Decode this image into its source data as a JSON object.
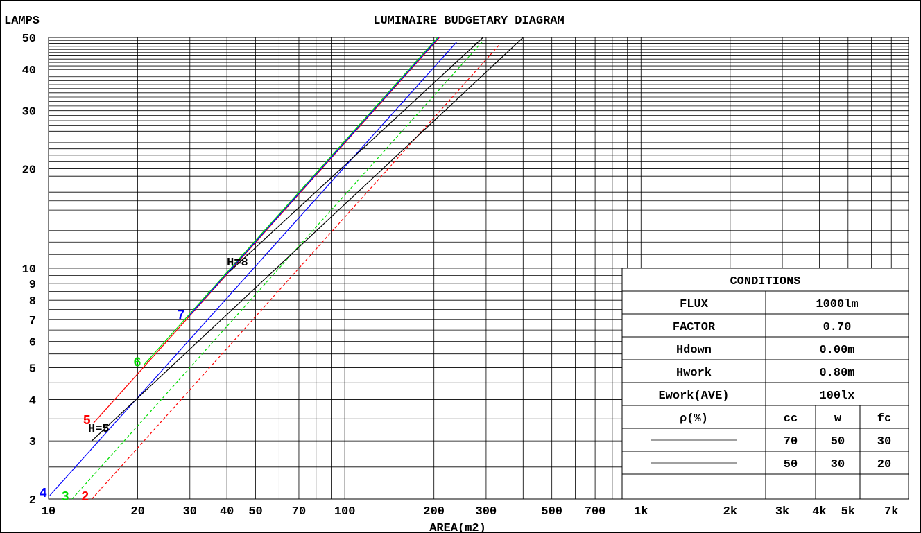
{
  "chart_data": {
    "type": "line",
    "title": "LUMINAIRE BUDGETARY DIAGRAM",
    "ylabel": "LAMPS",
    "xlabel": "AREA(m2)",
    "x_scale": "log",
    "y_scale": "log",
    "xlim": [
      10,
      8000
    ],
    "ylim": [
      2,
      50
    ],
    "x_ticks": [
      {
        "value": 10,
        "label": "10"
      },
      {
        "value": 20,
        "label": "20"
      },
      {
        "value": 30,
        "label": "30"
      },
      {
        "value": 40,
        "label": "40"
      },
      {
        "value": 50,
        "label": "50"
      },
      {
        "value": 70,
        "label": "70"
      },
      {
        "value": 100,
        "label": "100"
      },
      {
        "value": 200,
        "label": "200"
      },
      {
        "value": 300,
        "label": "300"
      },
      {
        "value": 500,
        "label": "500"
      },
      {
        "value": 700,
        "label": "700"
      },
      {
        "value": 1000,
        "label": "1k"
      },
      {
        "value": 2000,
        "label": "2k"
      },
      {
        "value": 3000,
        "label": "3k"
      },
      {
        "value": 4000,
        "label": "4k"
      },
      {
        "value": 5000,
        "label": "5k"
      },
      {
        "value": 7000,
        "label": "7k"
      }
    ],
    "y_ticks": [
      {
        "value": 2,
        "label": "2"
      },
      {
        "value": 3,
        "label": "3"
      },
      {
        "value": 4,
        "label": "4"
      },
      {
        "value": 5,
        "label": "5"
      },
      {
        "value": 6,
        "label": "6"
      },
      {
        "value": 7,
        "label": "7"
      },
      {
        "value": 8,
        "label": "8"
      },
      {
        "value": 9,
        "label": "9"
      },
      {
        "value": 10,
        "label": "10"
      },
      {
        "value": 20,
        "label": "20"
      },
      {
        "value": 30,
        "label": "30"
      },
      {
        "value": 40,
        "label": "40"
      },
      {
        "value": 50,
        "label": "50"
      }
    ],
    "grid": true,
    "series": [
      {
        "name": "2",
        "color": "#ff0000",
        "dash": true,
        "start_area": 14,
        "start_lamps": 2,
        "end_lamps": 47.5
      },
      {
        "name": "3",
        "color": "#00dd00",
        "dash": true,
        "start_area": 12,
        "start_lamps": 2,
        "end_lamps": 49
      },
      {
        "name": "4",
        "color": "#0000ff",
        "dash": false,
        "start_area": 10.1,
        "start_lamps": 2.05,
        "end_lamps": 48.5
      },
      {
        "name": "5",
        "color": "#ff0000",
        "dash": false,
        "start_area": 14.2,
        "start_lamps": 3.4,
        "end_lamps": 50
      },
      {
        "name": "6",
        "color": "#00dd00",
        "dash": false,
        "start_area": 21,
        "start_lamps": 5.1,
        "end_lamps": 50
      },
      {
        "name": "7",
        "color": "#0000ff",
        "dash": false,
        "start_area": 29.5,
        "start_lamps": 7.1,
        "end_lamps": 50
      }
    ],
    "height_lines": [
      {
        "label": "H=5",
        "color": "#000000",
        "start_area": 14,
        "start_lamps": 3.0,
        "end_area": 400,
        "end_lamps": 50
      },
      {
        "label": "H=8",
        "color": "#000000",
        "start_area": 41,
        "start_lamps": 9.8,
        "end_area": 293,
        "end_lamps": 50
      }
    ],
    "annotations": [
      {
        "text": "H=5",
        "area": 13.6,
        "lamps": 3.2
      },
      {
        "text": "H=8",
        "area": 40,
        "lamps": 10.2
      }
    ]
  },
  "conditions_table": {
    "title": "CONDITIONS",
    "rows": [
      {
        "label": "FLUX",
        "value": "1000lm"
      },
      {
        "label": "FACTOR",
        "value": "0.70"
      },
      {
        "label": "Hdown",
        "value": "0.00m"
      },
      {
        "label": "Hwork",
        "value": "0.80m"
      },
      {
        "label": "Ework(AVE)",
        "value": "100lx"
      }
    ],
    "rho_header": "ρ(%)",
    "rho_columns": [
      "cc",
      "w",
      "fc"
    ],
    "rho_rows": [
      {
        "line": "solid",
        "values": [
          "70",
          "50",
          "30"
        ]
      },
      {
        "line": "dashed",
        "values": [
          "50",
          "30",
          "20"
        ]
      }
    ]
  }
}
